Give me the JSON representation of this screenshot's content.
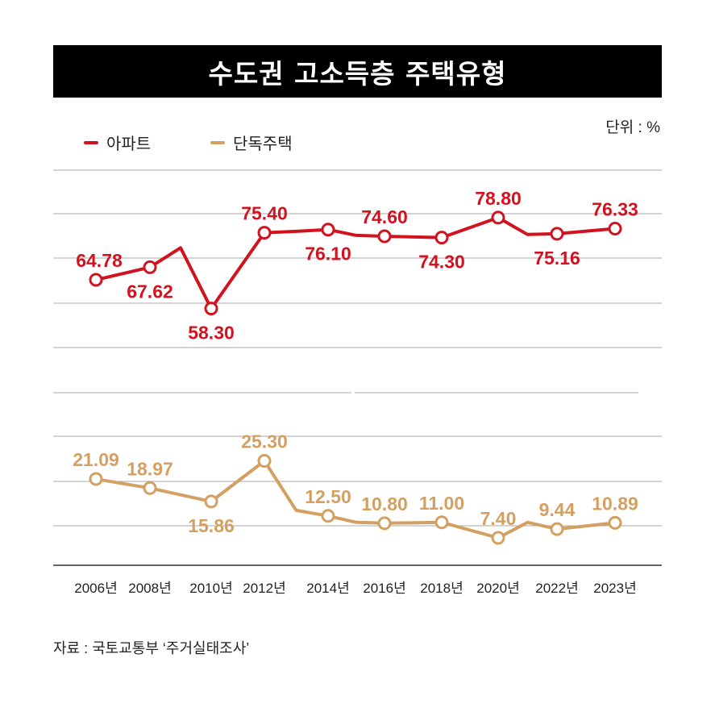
{
  "chart_data": {
    "type": "line",
    "title": "수도권 고소득층 주택유형",
    "unit_label": "단위 : %",
    "source": "자료 : 국토교통부 ‘주거실태조사’",
    "categories": [
      "2006년",
      "2008년",
      "2010년",
      "2012년",
      "2014년",
      "2016년",
      "2018년",
      "2020년",
      "2022년",
      "2023년"
    ],
    "category_years": [
      2006,
      2008,
      2010,
      2012,
      2014,
      2016,
      2018,
      2020,
      2022,
      2023
    ],
    "grid": true,
    "legend_position": "top-left",
    "series": [
      {
        "name": "아파트",
        "color": "#d3121f",
        "values": [
          64.78,
          67.62,
          58.3,
          75.4,
          76.1,
          74.6,
          74.3,
          78.8,
          75.16,
          76.33
        ],
        "labels": [
          "64.78",
          "67.62",
          "58.30",
          "75.40",
          "76.10",
          "74.60",
          "74.30",
          "78.80",
          "75.16",
          "76.33"
        ],
        "unlabeled_points": [
          {
            "year": 2009,
            "value": 72.0
          },
          {
            "year": 2013,
            "value": 75.7
          },
          {
            "year": 2015,
            "value": 74.8
          },
          {
            "year": 2021,
            "value": 75.0
          }
        ]
      },
      {
        "name": "단독주택",
        "color": "#d4a062",
        "values": [
          21.09,
          18.97,
          15.86,
          25.3,
          12.5,
          10.8,
          11.0,
          7.4,
          9.44,
          10.89
        ],
        "labels": [
          "21.09",
          "18.97",
          "15.86",
          "25.30",
          "12.50",
          "10.80",
          "11.00",
          "7.40",
          "9.44",
          "10.89"
        ],
        "unlabeled_points": [
          {
            "year": 2013,
            "value": 13.8
          },
          {
            "year": 2015,
            "value": 11.0
          },
          {
            "year": 2021,
            "value": 11.0
          }
        ]
      }
    ]
  }
}
